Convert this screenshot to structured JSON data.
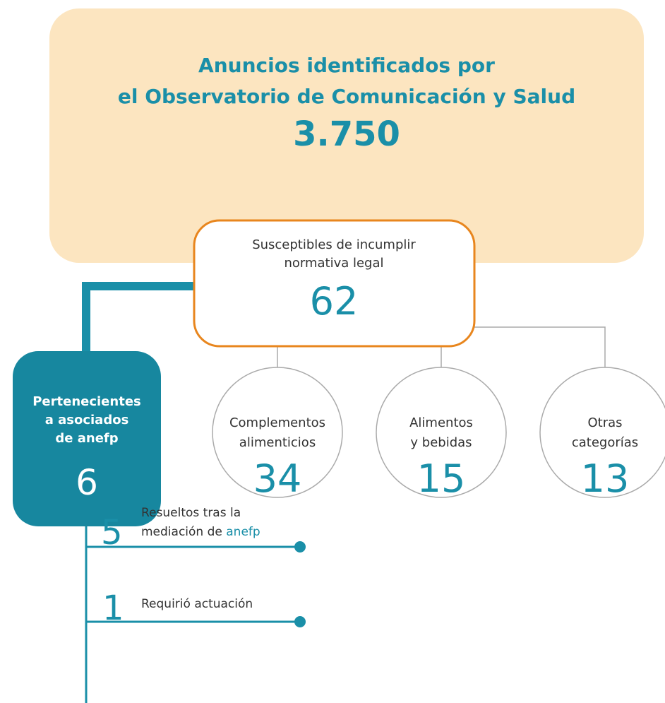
{
  "total": {
    "title_lines": [
      "Anuncios identificados por",
      "el Observatorio de Comunicación y Salud"
    ],
    "value": "3.750"
  },
  "suspect": {
    "label_lines": [
      "Susceptibles de incumplir",
      "normativa legal"
    ],
    "value": 62
  },
  "categories": [
    {
      "label_lines": [
        "Complementos",
        "alimenticios"
      ],
      "value": 34
    },
    {
      "label_lines": [
        "Alimentos",
        "y bebidas"
      ],
      "value": 15
    },
    {
      "label_lines": [
        "Otras",
        "categorías"
      ],
      "value": 13
    }
  ],
  "members": {
    "label_lines": [
      "Pertenecientes",
      "a asociados",
      "de anefp"
    ],
    "value": 6
  },
  "outcomes": [
    {
      "value": 5,
      "line1": "Resueltos tras la",
      "line2": "mediación de ",
      "highlight": "anefp"
    },
    {
      "value": 1,
      "line1": "Requirió actuación"
    }
  ]
}
